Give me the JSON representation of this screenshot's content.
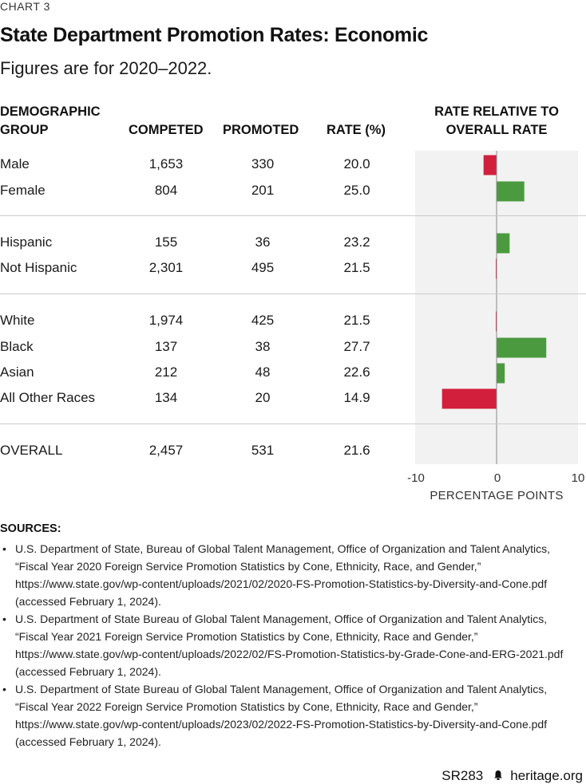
{
  "header": {
    "chart_label": "CHART 3",
    "title": "State Department Promotion Rates: Economic",
    "subtitle": "Figures are for 2020–2022."
  },
  "columns": {
    "group_line1": "DEMOGRAPHIC",
    "group_line2": "GROUP",
    "competed": "COMPETED",
    "promoted": "PROMOTED",
    "rate": "RATE (%)",
    "relative_line1": "RATE RELATIVE TO",
    "relative_line2": "OVERALL RATE"
  },
  "chart_data": {
    "type": "bar",
    "orientation": "horizontal",
    "categories": [
      "Male",
      "Female",
      "Hispanic",
      "Not Hispanic",
      "White",
      "Black",
      "Asian",
      "All Other Races",
      "OVERALL"
    ],
    "competed": [
      "1,653",
      "804",
      "155",
      "2,301",
      "1,974",
      "137",
      "212",
      "134",
      "2,457"
    ],
    "promoted": [
      "330",
      "201",
      "36",
      "495",
      "425",
      "38",
      "48",
      "20",
      "531"
    ],
    "rate": [
      "20.0",
      "25.0",
      "23.2",
      "21.5",
      "21.5",
      "27.7",
      "22.6",
      "14.9",
      "21.6"
    ],
    "values": [
      -1.6,
      3.4,
      1.6,
      -0.1,
      -0.1,
      6.1,
      1.0,
      -6.7,
      0
    ],
    "xlim": [
      -10,
      10
    ],
    "xticks": [
      "-10",
      "0",
      "10"
    ],
    "xlabel": "PERCENTAGE POINTS",
    "colors": {
      "positive": "#4b9a3f",
      "negative": "#d21f3c",
      "plot_bg": "#f2f2f2",
      "zero_line": "#888888"
    }
  },
  "sources": {
    "title": "SOURCES:",
    "bullet": "•",
    "items": [
      {
        "line1": "U.S. Department of State, Bureau of Global Talent Management, Office of Organization and Talent Analytics,",
        "line2": "“Fiscal Year 2020 Foreign Service Promotion Statistics by Cone, Ethnicity, Race, and Gender,”",
        "line3": "https://www.state.gov/wp-content/uploads/2021/02/2020-FS-Promotion-Statistics-by-Diversity-and-Cone.pdf",
        "line4": "(accessed February 1, 2024)."
      },
      {
        "line1": "U.S. Department of State Bureau of Global Talent Management, Office of Organization and Talent Analytics,",
        "line2": "“Fiscal Year 2021 Foreign Service Promotion Statistics by Cone, Ethnicity, Race and Gender,”",
        "line3": "https://www.state.gov/wp-content/uploads/2022/02/FS-Promotion-Statistics-by-Grade-Cone-and-ERG-2021.pdf",
        "line4": "(accessed February 1, 2024)."
      },
      {
        "line1": "U.S. Department of State Bureau of Global Talent Management, Office of Organization and Talent Analytics,",
        "line2": "“Fiscal Year 2022 Foreign Service Promotion Statistics by Cone, Ethnicity, Race and Gender,”",
        "line3": "https://www.state.gov/wp-content/uploads/2023/02/2022-FS-Promotion-Statistics-by-Diversity-and-Cone.pdf",
        "line4": "(accessed February 1, 2024)."
      }
    ]
  },
  "footer": {
    "report_id": "SR283",
    "logo_icon": "heritage-bell-icon",
    "site": "heritage.org"
  }
}
